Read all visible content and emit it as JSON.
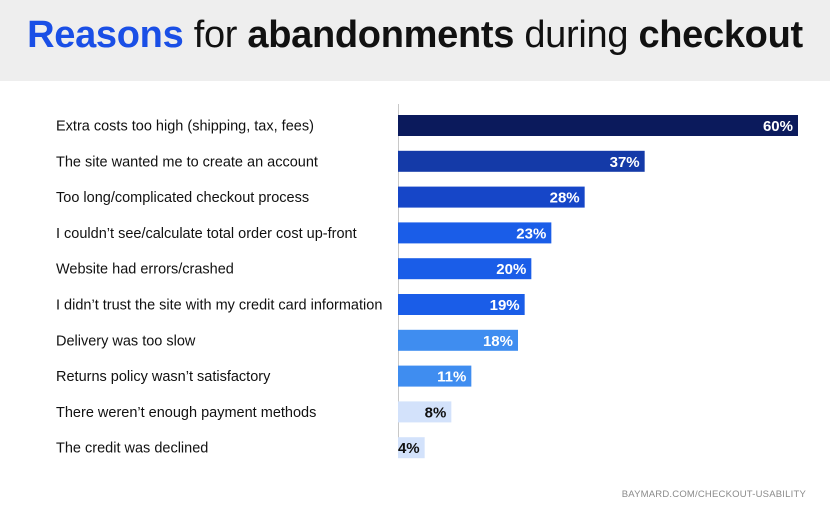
{
  "title": {
    "part1": "Reasons",
    "part2": "for",
    "part3": "abandonments",
    "part4": "during",
    "part5": "checkout"
  },
  "source": "BAYMARD.COM/CHECKOUT-USABILITY",
  "colors": {
    "header_bg": "#eeeeee",
    "title_accent": "#1a4fe6",
    "bar_colors": [
      "#0b1a5c",
      "#143aa8",
      "#1646c8",
      "#1a5de8",
      "#1a5de8",
      "#1a5de8",
      "#3f8df0",
      "#3f8df0",
      "#d3e2fb",
      "#d3e2fb"
    ],
    "value_text_colors": [
      "#ffffff",
      "#ffffff",
      "#ffffff",
      "#ffffff",
      "#ffffff",
      "#ffffff",
      "#ffffff",
      "#ffffff",
      "#111111",
      "#111111"
    ]
  },
  "chart_data": {
    "type": "bar",
    "orientation": "horizontal",
    "categories": [
      "Extra costs too high (shipping, tax, fees)",
      "The site wanted me to create an account",
      "Too long/complicated checkout process",
      "I couldn’t see/calculate total order cost up-front",
      "Website had errors/crashed",
      "I didn’t trust the site with my credit card information",
      "Delivery was too slow",
      "Returns policy wasn’t satisfactory",
      "There weren’t enough payment methods",
      "The credit was declined"
    ],
    "values": [
      60,
      37,
      28,
      23,
      20,
      19,
      18,
      11,
      8,
      4
    ],
    "value_labels": [
      "60%",
      "37%",
      "28%",
      "23%",
      "20%",
      "19%",
      "18%",
      "11%",
      "8%",
      "4%"
    ],
    "xlim": [
      0,
      60
    ],
    "grid": false,
    "legend": "none"
  }
}
